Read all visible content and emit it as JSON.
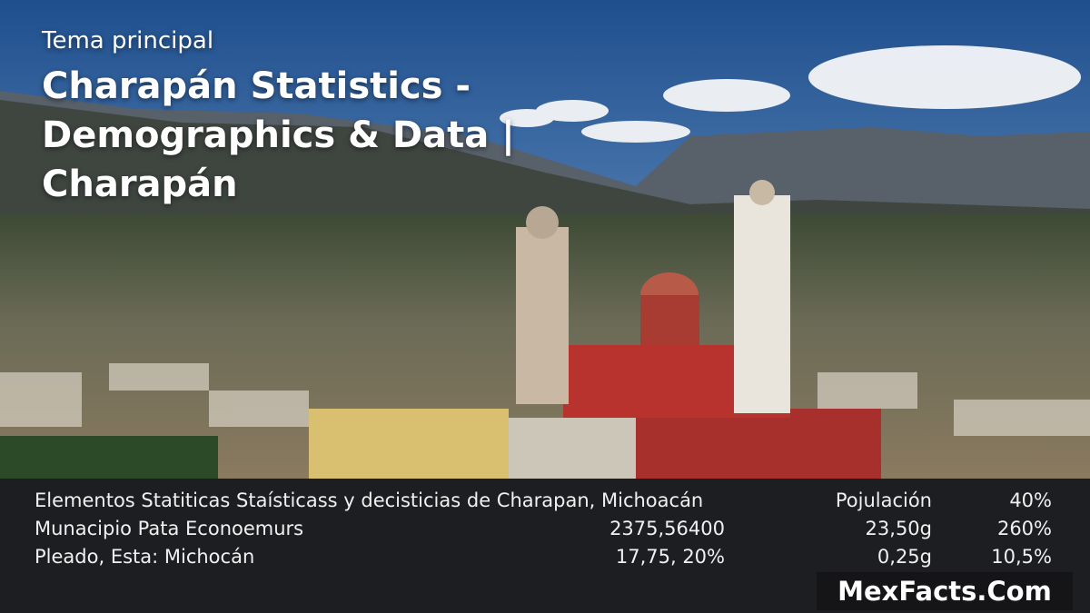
{
  "header": {
    "eyebrow": "Tema principal",
    "title": "Charapán Statistics - Demographics & Data | Charapán"
  },
  "stats": {
    "rows": [
      {
        "label": "Elementos Statiticas Staísticass y decisticias de Charapan, Michoacán",
        "value": "",
        "metric": "Pojulación",
        "percent": "40%"
      },
      {
        "label": "Munacipio Pata Econoemurs",
        "value": "2375,56400",
        "metric": "23,50g",
        "percent": "260%"
      },
      {
        "label": "Pleado, Esta: Michocán",
        "value": "17,75, 20%",
        "metric": "0,25g",
        "percent": "10,5%"
      }
    ]
  },
  "watermark": "MexFacts.Com",
  "colors": {
    "panel": "#1d1e21",
    "sky": "#2f5f9c",
    "tower": "#e9e4dc",
    "brick": "#a52a2a"
  }
}
